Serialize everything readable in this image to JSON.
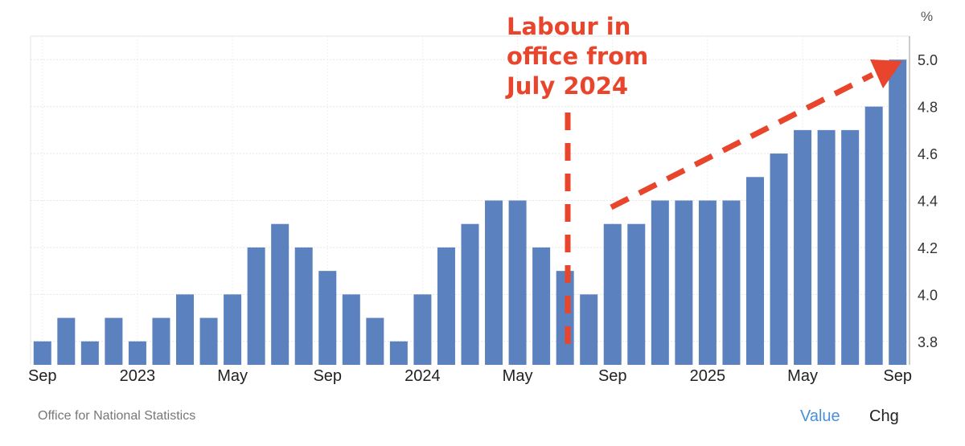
{
  "chart_data": {
    "type": "bar",
    "unit_label": "%",
    "categories": [
      "Sep 2022",
      "Oct 2022",
      "Nov 2022",
      "Dec 2022",
      "Jan 2023",
      "Feb 2023",
      "Mar 2023",
      "Apr 2023",
      "May 2023",
      "Jun 2023",
      "Jul 2023",
      "Aug 2023",
      "Sep 2023",
      "Oct 2023",
      "Nov 2023",
      "Dec 2023",
      "Jan 2024",
      "Feb 2024",
      "Mar 2024",
      "Apr 2024",
      "May 2024",
      "Jun 2024",
      "Jul 2024",
      "Aug 2024",
      "Sep 2024",
      "Oct 2024",
      "Nov 2024",
      "Dec 2024",
      "Jan 2025",
      "Feb 2025",
      "Mar 2025",
      "Apr 2025",
      "May 2025",
      "Jun 2025",
      "Jul 2025",
      "Aug 2025",
      "Sep 2025"
    ],
    "values": [
      3.8,
      3.9,
      3.8,
      3.9,
      3.8,
      3.9,
      4.0,
      3.9,
      4.0,
      4.2,
      4.3,
      4.2,
      4.1,
      4.0,
      3.9,
      3.8,
      4.0,
      4.2,
      4.3,
      4.4,
      4.4,
      4.2,
      4.1,
      4.0,
      4.3,
      4.3,
      4.4,
      4.4,
      4.4,
      4.4,
      4.5,
      4.6,
      4.7,
      4.7,
      4.7,
      4.8,
      5.0
    ],
    "x_tick_labels": [
      {
        "index": 0,
        "label": "Sep"
      },
      {
        "index": 4,
        "label": "2023"
      },
      {
        "index": 8,
        "label": "May"
      },
      {
        "index": 12,
        "label": "Sep"
      },
      {
        "index": 16,
        "label": "2024"
      },
      {
        "index": 20,
        "label": "May"
      },
      {
        "index": 24,
        "label": "Sep"
      },
      {
        "index": 28,
        "label": "2025"
      },
      {
        "index": 32,
        "label": "May"
      },
      {
        "index": 36,
        "label": "Sep"
      }
    ],
    "y_ticks": [
      3.8,
      4.0,
      4.2,
      4.4,
      4.6,
      4.8,
      5.0
    ],
    "y_tick_labels": [
      "3.8",
      "4.0",
      "4.2",
      "4.4",
      "4.6",
      "4.8",
      "5.0"
    ],
    "ylim": [
      3.7,
      5.1
    ],
    "y_axis_side": "right",
    "grid": true,
    "bar_color": "#5b82be",
    "annotation": {
      "text": "Labour in\noffice from\nJuly 2024",
      "color": "#e8452c"
    }
  },
  "footer": {
    "source": "Office for National Statistics",
    "tabs": {
      "value": "Value",
      "chg": "Chg"
    }
  }
}
